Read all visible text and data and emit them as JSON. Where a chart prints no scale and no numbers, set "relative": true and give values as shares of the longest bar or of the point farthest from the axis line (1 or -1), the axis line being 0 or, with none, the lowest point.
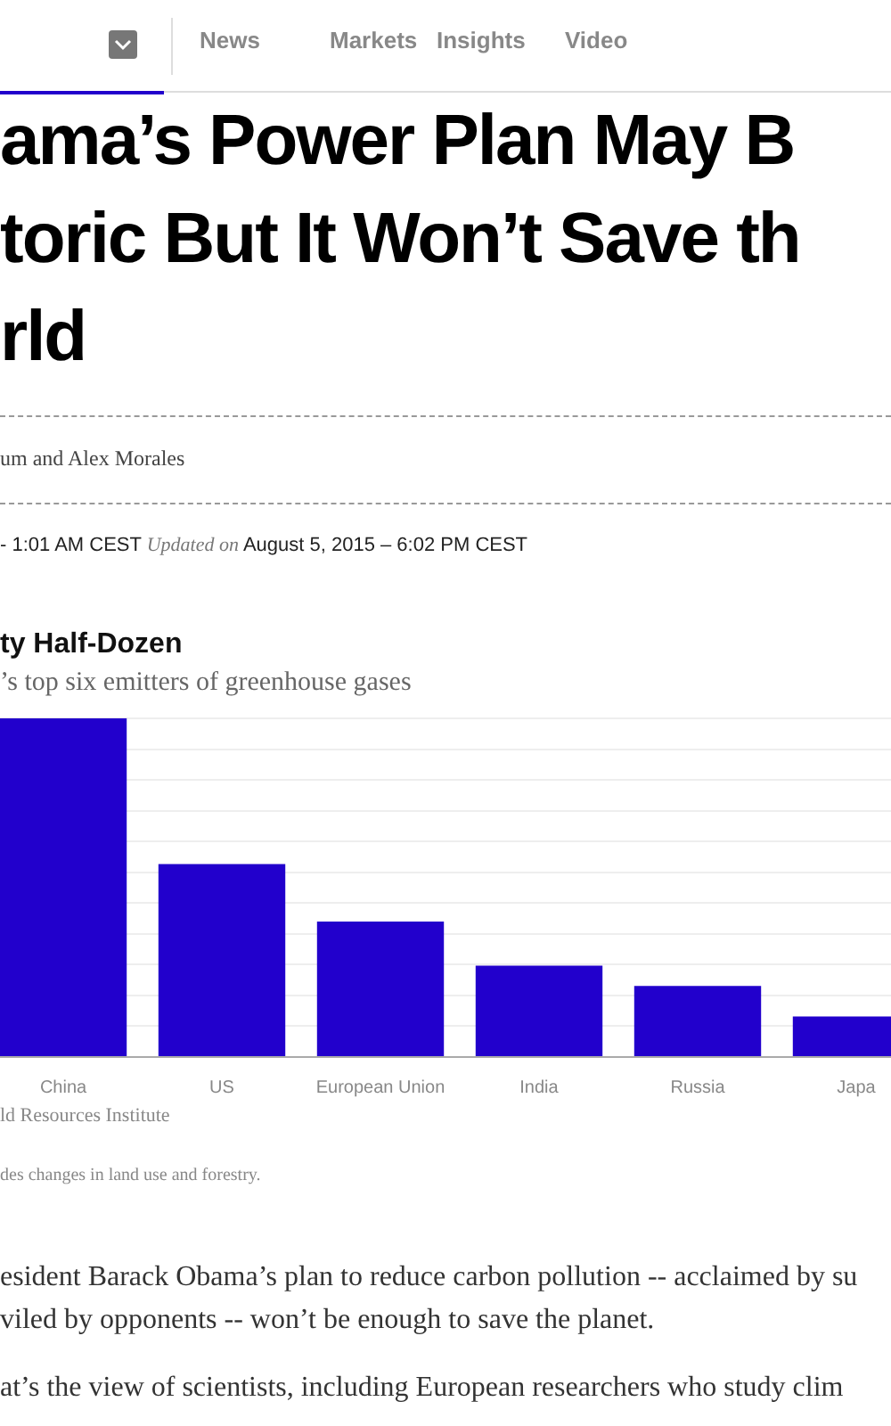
{
  "chart_data": {
    "type": "bar",
    "title": "ty Half-Dozen",
    "subtitle": "’s top six emitters of greenhouse gases",
    "categories": [
      "China",
      "US",
      "European Union",
      "India",
      "Russia",
      "Japa"
    ],
    "values": [
      1,
      0.57,
      0.4,
      0.27,
      0.21,
      0.12
    ],
    "color": "#2200cc",
    "relative": true,
    "grid": "y",
    "annotations": [
      "News",
      "Markets",
      "Insights",
      "Video",
      "ama’s Power Plan May B",
      "toric But It Won’t Save th",
      "rld",
      "um and Alex Morales",
      "- 1:01 AM CEST",
      "Updated on",
      "August 5, 2015  –  6:02 PM CEST",
      "ld Resources Institute",
      "des changes in land use and forestry.",
      "esident Barack Obama’s plan to reduce carbon pollution -- acclaimed by su",
      "viled by opponents -- won’t be enough to save the planet.",
      "at’s the view of scientists, including European researchers who study clim"
    ]
  }
}
